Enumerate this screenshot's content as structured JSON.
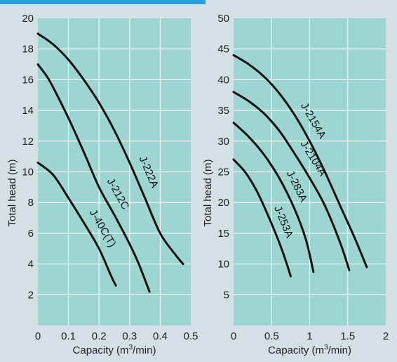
{
  "chart_data": [
    {
      "type": "line",
      "title": "",
      "xlabel": "Capacity (m",
      "xlabel_sup": "3",
      "xlabel_suffix": "/min)",
      "ylabel": "Total head (m)",
      "xlim": [
        0,
        0.5
      ],
      "ylim": [
        0,
        20
      ],
      "xticks": [
        0,
        0.1,
        0.2,
        0.3,
        0.4,
        0.5
      ],
      "xtick_labels": [
        "0",
        "0.1",
        "0.2",
        "0.3",
        "0.4",
        "0.5"
      ],
      "yticks": [
        2,
        4,
        6,
        8,
        10,
        12,
        14,
        16,
        18,
        20
      ],
      "grid": true,
      "background": "#9dd5d2",
      "series": [
        {
          "name": "J-222A",
          "x": [
            0,
            0.05,
            0.1,
            0.15,
            0.2,
            0.25,
            0.3,
            0.35,
            0.4,
            0.45,
            0.475
          ],
          "y": [
            19.0,
            18.3,
            17.3,
            16.0,
            14.5,
            12.7,
            10.6,
            8.3,
            6.0,
            4.6,
            4.0
          ]
        },
        {
          "name": "J-212C",
          "x": [
            0,
            0.03,
            0.05,
            0.1,
            0.15,
            0.2,
            0.25,
            0.3,
            0.33,
            0.365
          ],
          "y": [
            17.0,
            16.2,
            15.5,
            13.5,
            11.3,
            9.0,
            7.2,
            5.3,
            4.0,
            2.2
          ]
        },
        {
          "name": "J-40C(T)",
          "x": [
            0,
            0.05,
            0.1,
            0.15,
            0.2,
            0.24,
            0.255
          ],
          "y": [
            10.6,
            9.8,
            8.3,
            6.7,
            5.0,
            3.2,
            2.6
          ]
        }
      ]
    },
    {
      "type": "line",
      "title": "",
      "xlabel": "Capacity (m",
      "xlabel_sup": "3",
      "xlabel_suffix": "/min)",
      "ylabel": "Total head (m)",
      "xlim": [
        0,
        2
      ],
      "ylim": [
        0,
        50
      ],
      "xticks": [
        0,
        0.5,
        1,
        1.5,
        2
      ],
      "xtick_labels": [
        "0",
        "0.5",
        "1",
        "1.5",
        "2"
      ],
      "yticks": [
        5,
        10,
        15,
        20,
        25,
        30,
        35,
        40,
        45,
        50
      ],
      "grid": true,
      "background": "#9dd5d2",
      "series": [
        {
          "name": "J-2154A",
          "x": [
            0,
            0.2,
            0.4,
            0.6,
            0.8,
            1.0,
            1.2,
            1.4,
            1.6,
            1.75
          ],
          "y": [
            44.0,
            42.5,
            40.5,
            37.8,
            34.3,
            30.0,
            25.0,
            19.5,
            14.0,
            9.5
          ]
        },
        {
          "name": "J-2104A",
          "x": [
            0,
            0.2,
            0.4,
            0.6,
            0.8,
            1.0,
            1.2,
            1.4,
            1.52
          ],
          "y": [
            38.0,
            36.5,
            34.5,
            31.7,
            28.0,
            24.0,
            19.5,
            13.5,
            9.0
          ]
        },
        {
          "name": "J-283A",
          "x": [
            0,
            0.2,
            0.4,
            0.6,
            0.8,
            0.95,
            1.05
          ],
          "y": [
            33.0,
            30.7,
            27.8,
            24.0,
            19.0,
            14.0,
            8.7
          ]
        },
        {
          "name": "J-253A",
          "x": [
            0,
            0.15,
            0.3,
            0.45,
            0.6,
            0.7,
            0.75
          ],
          "y": [
            27.0,
            25.0,
            22.0,
            18.0,
            13.5,
            10.0,
            8.0
          ]
        }
      ]
    }
  ]
}
